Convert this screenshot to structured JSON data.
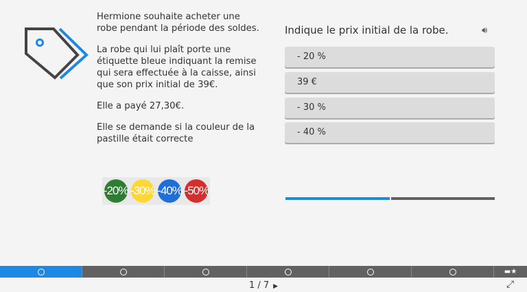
{
  "story": {
    "paragraphs": [
      "Hermione souhaite acheter une robe pendant la période des soldes.",
      "La robe qui lui plaît porte une étiquette bleue indiquant la remise qui sera effectuée à la caisse, ainsi que son prix initial de 39€.",
      "Elle a payé 27,30€.",
      "Elle se demande si la couleur de la pastille était correcte"
    ]
  },
  "badges": [
    {
      "label": "-20%",
      "color": "#2e7d32"
    },
    {
      "label": "-30%",
      "color": "#fdd835"
    },
    {
      "label": "-40%",
      "color": "#1e6fd9"
    },
    {
      "label": "-50%",
      "color": "#d32f2f"
    }
  ],
  "question": {
    "text": "Indique le prix initial de la robe.",
    "options": [
      "- 20 %",
      "39 €",
      "- 30 %",
      "- 40 %"
    ]
  },
  "progress": {
    "answered_fraction": 0.5,
    "accent": "#1e88e5"
  },
  "nav": {
    "current": 1,
    "total": 7,
    "page_label": "1 / 7",
    "next_icon": "triangle-right-icon",
    "fullscreen_icon": "expand-icon"
  }
}
